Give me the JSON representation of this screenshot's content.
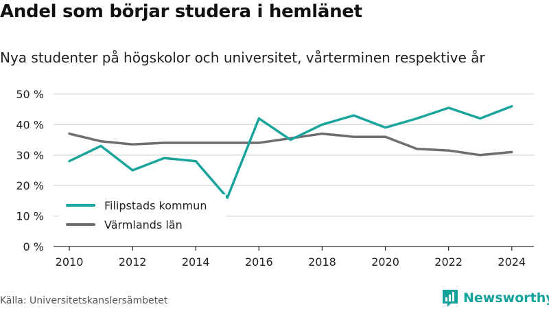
{
  "header": {
    "title": "Andel som börjar studera i hemlänet",
    "subtitle": "Nya studenter på högskolor och universitet, vårterminen respektive år"
  },
  "footer": {
    "source": "Källa: Universitetskanslersämbetet",
    "brand": "Newsworthy",
    "brand_icon": "newsworthy-logo-icon"
  },
  "colors": {
    "filipstad": "#1aa59c",
    "varmland": "#6e6e72",
    "brand": "#14a39a",
    "grid": "#d9d9d9",
    "axis": "#333333"
  },
  "chart_data": {
    "type": "line",
    "x": [
      2010,
      2011,
      2012,
      2013,
      2014,
      2015,
      2016,
      2017,
      2018,
      2019,
      2020,
      2021,
      2022,
      2023,
      2024
    ],
    "series": [
      {
        "name": "Filipstads kommun",
        "color": "#1aa59c",
        "values": [
          28,
          33,
          25,
          29,
          28,
          16,
          42,
          35,
          40,
          43,
          39,
          42,
          45.5,
          42,
          46
        ]
      },
      {
        "name": "Värmlands län",
        "color": "#6e6e72",
        "values": [
          37,
          34.5,
          33.5,
          34,
          34,
          34,
          34,
          35.5,
          37,
          36,
          36,
          32,
          31.5,
          30,
          31
        ]
      }
    ],
    "xticks": [
      "2010",
      "2012",
      "2014",
      "2016",
      "2018",
      "2020",
      "2022",
      "2024"
    ],
    "yticks": [
      "0 %",
      "10 %",
      "20 %",
      "30 %",
      "40 %",
      "50 %"
    ],
    "ylim": [
      0,
      50
    ],
    "xlim": [
      2009.5,
      2024.7
    ],
    "grid": true,
    "legend_position": "bottom-left",
    "xlabel": "",
    "ylabel": ""
  }
}
